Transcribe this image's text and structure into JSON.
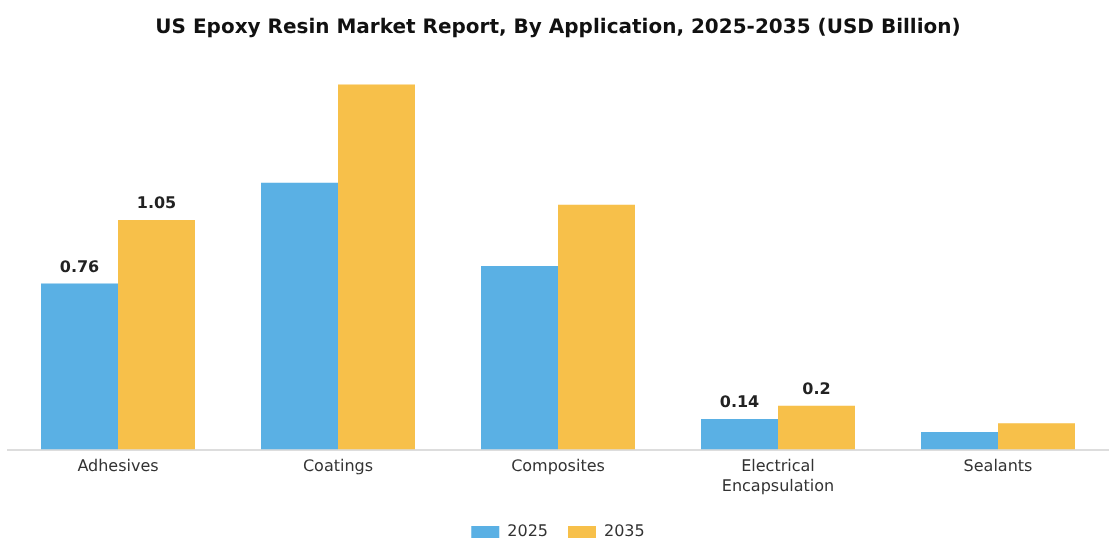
{
  "chart_data": {
    "type": "bar",
    "title": "US Epoxy Resin Market Report, By Application, 2025-2035 (USD Billion)",
    "categories": [
      "Adhesives",
      "Coatings",
      "Composites",
      "Electrical Encapsulation",
      "Sealants"
    ],
    "series": [
      {
        "name": "2025",
        "color": "#5ab0e4",
        "values": [
          0.76,
          1.22,
          0.84,
          0.14,
          0.08
        ],
        "value_labels": [
          "0.76",
          null,
          null,
          "0.14",
          null
        ]
      },
      {
        "name": "2035",
        "color": "#f7c04a",
        "values": [
          1.05,
          1.67,
          1.12,
          0.2,
          0.12
        ],
        "value_labels": [
          "1.05",
          null,
          null,
          "0.2",
          null
        ]
      }
    ],
    "legend": "bottom"
  }
}
